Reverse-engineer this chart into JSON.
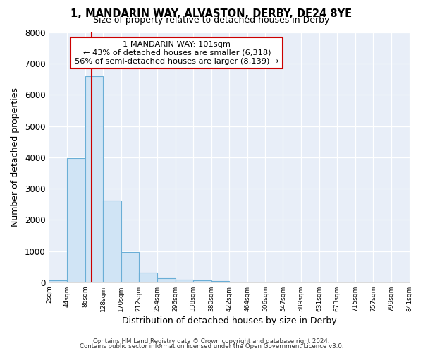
{
  "title": "1, MANDARIN WAY, ALVASTON, DERBY, DE24 8YE",
  "subtitle": "Size of property relative to detached houses in Derby",
  "xlabel": "Distribution of detached houses by size in Derby",
  "ylabel": "Number of detached properties",
  "bin_edges": [
    2,
    44,
    86,
    128,
    170,
    212,
    254,
    296,
    338,
    380,
    422,
    464,
    506,
    547,
    589,
    631,
    673,
    715,
    757,
    799,
    841
  ],
  "bin_heights": [
    70,
    3980,
    6600,
    2620,
    960,
    320,
    130,
    80,
    55,
    45,
    0,
    0,
    0,
    0,
    0,
    0,
    0,
    0,
    0,
    0
  ],
  "bar_color": "#d0e4f5",
  "bar_edge_color": "#6aaed6",
  "property_line_x": 101,
  "property_line_color": "#cc0000",
  "annotation_title": "1 MANDARIN WAY: 101sqm",
  "annotation_line1": "← 43% of detached houses are smaller (6,318)",
  "annotation_line2": "56% of semi-detached houses are larger (8,139) →",
  "annotation_box_edge_color": "#cc0000",
  "ylim": [
    0,
    8000
  ],
  "xlim": [
    2,
    841
  ],
  "tick_labels": [
    "2sqm",
    "44sqm",
    "86sqm",
    "128sqm",
    "170sqm",
    "212sqm",
    "254sqm",
    "296sqm",
    "338sqm",
    "380sqm",
    "422sqm",
    "464sqm",
    "506sqm",
    "547sqm",
    "589sqm",
    "631sqm",
    "673sqm",
    "715sqm",
    "757sqm",
    "799sqm",
    "841sqm"
  ],
  "tick_positions": [
    2,
    44,
    86,
    128,
    170,
    212,
    254,
    296,
    338,
    380,
    422,
    464,
    506,
    547,
    589,
    631,
    673,
    715,
    757,
    799,
    841
  ],
  "ytick_values": [
    0,
    1000,
    2000,
    3000,
    4000,
    5000,
    6000,
    7000,
    8000
  ],
  "footer1": "Contains HM Land Registry data © Crown copyright and database right 2024.",
  "footer2": "Contains public sector information licensed under the Open Government Licence v3.0.",
  "background_color": "#ffffff",
  "plot_bg_color": "#e8eef8",
  "grid_color": "#ffffff"
}
